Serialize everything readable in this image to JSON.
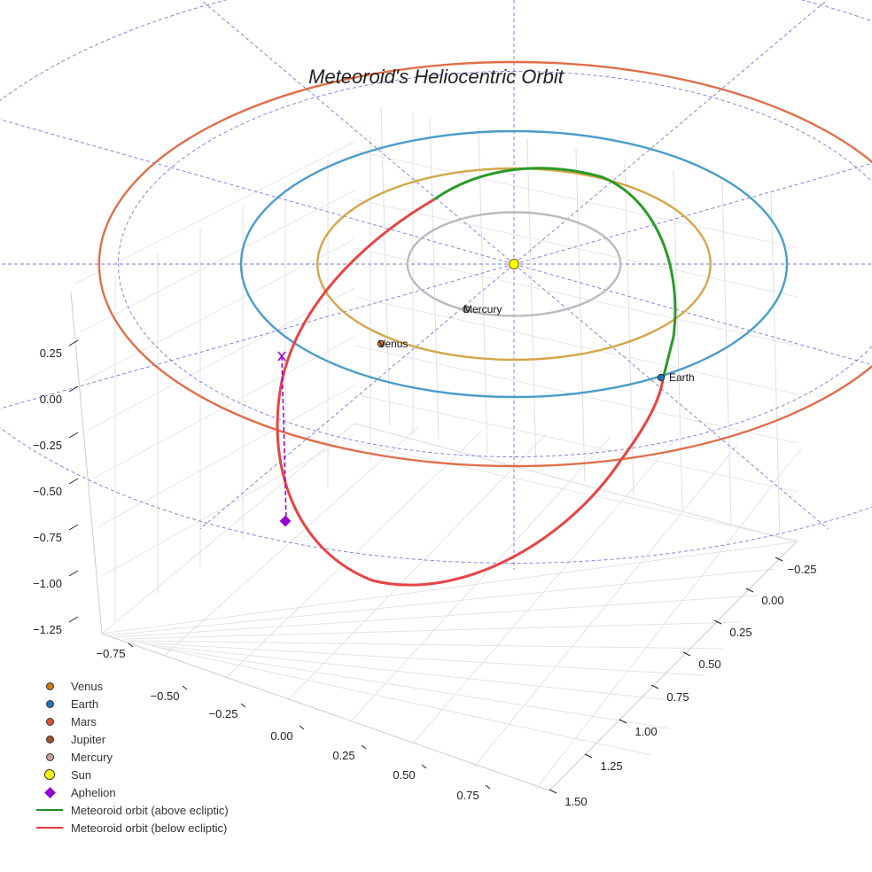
{
  "chart_data": {
    "type": "scatter",
    "projection": "3d",
    "title": "Meteoroid's Heliocentric Orbit",
    "x_ticks": [
      -0.75,
      -0.5,
      -0.25,
      0.0,
      0.25,
      0.5,
      0.75
    ],
    "x_tick_labels": [
      "−0.75",
      "−0.50",
      "−0.25",
      "0.00",
      "0.25",
      "0.50",
      "0.75"
    ],
    "y_ticks": [
      -0.25,
      0.0,
      0.25,
      0.5,
      0.75,
      1.0,
      1.25,
      1.5
    ],
    "y_tick_labels": [
      "−0.25",
      "0.00",
      "0.25",
      "0.50",
      "0.75",
      "1.00",
      "1.25",
      "1.50"
    ],
    "z_ticks": [
      0.25,
      0.0,
      -0.25,
      -0.5,
      -0.75,
      -1.0,
      -1.25
    ],
    "z_tick_labels": [
      "0.25",
      "0.00",
      "−0.25",
      "−0.50",
      "−0.75",
      "−1.00",
      "−1.25"
    ],
    "planet_orbits": [
      {
        "name": "Mercury",
        "radius_au": 0.39,
        "color": "#bbbbbb"
      },
      {
        "name": "Venus",
        "radius_au": 0.72,
        "color": "#d4a64a"
      },
      {
        "name": "Earth",
        "radius_au": 1.0,
        "color": "#4a9cc9"
      },
      {
        "name": "Mars",
        "radius_au": 1.52,
        "color": "#e06e47"
      }
    ],
    "planets": [
      {
        "name": "Venus",
        "label": "Venus",
        "color": "#cc7a1a"
      },
      {
        "name": "Earth",
        "label": "Earth",
        "color": "#1f77b4"
      },
      {
        "name": "Mercury",
        "label": "Mercury",
        "color": "#aaaaaa"
      }
    ],
    "grid": true,
    "legend": {
      "placement": "lower-left",
      "entries": [
        {
          "label": "Venus",
          "symbol": "dot",
          "color": "#cc7a1a"
        },
        {
          "label": "Earth",
          "symbol": "dot",
          "color": "#1f77b4"
        },
        {
          "label": "Mars",
          "symbol": "dot",
          "color": "#d9542b"
        },
        {
          "label": "Jupiter",
          "symbol": "dot",
          "color": "#a0522d"
        },
        {
          "label": "Mercury",
          "symbol": "dot",
          "color": "#c0a0a0"
        },
        {
          "label": "Sun",
          "symbol": "dot-big",
          "color": "#ffff00"
        },
        {
          "label": "Aphelion",
          "symbol": "diamond",
          "color": "#9400d3"
        },
        {
          "label": "Meteoroid orbit (above ecliptic)",
          "symbol": "line",
          "color": "#228b22"
        },
        {
          "label": "Meteoroid orbit (below ecliptic)",
          "symbol": "line",
          "color": "#e8383d"
        }
      ]
    },
    "colors": {
      "above": "#2a9a2a",
      "below": "#e84343",
      "ecliptic_grid": "#5555dd",
      "aphelion": "#9400d3"
    }
  }
}
